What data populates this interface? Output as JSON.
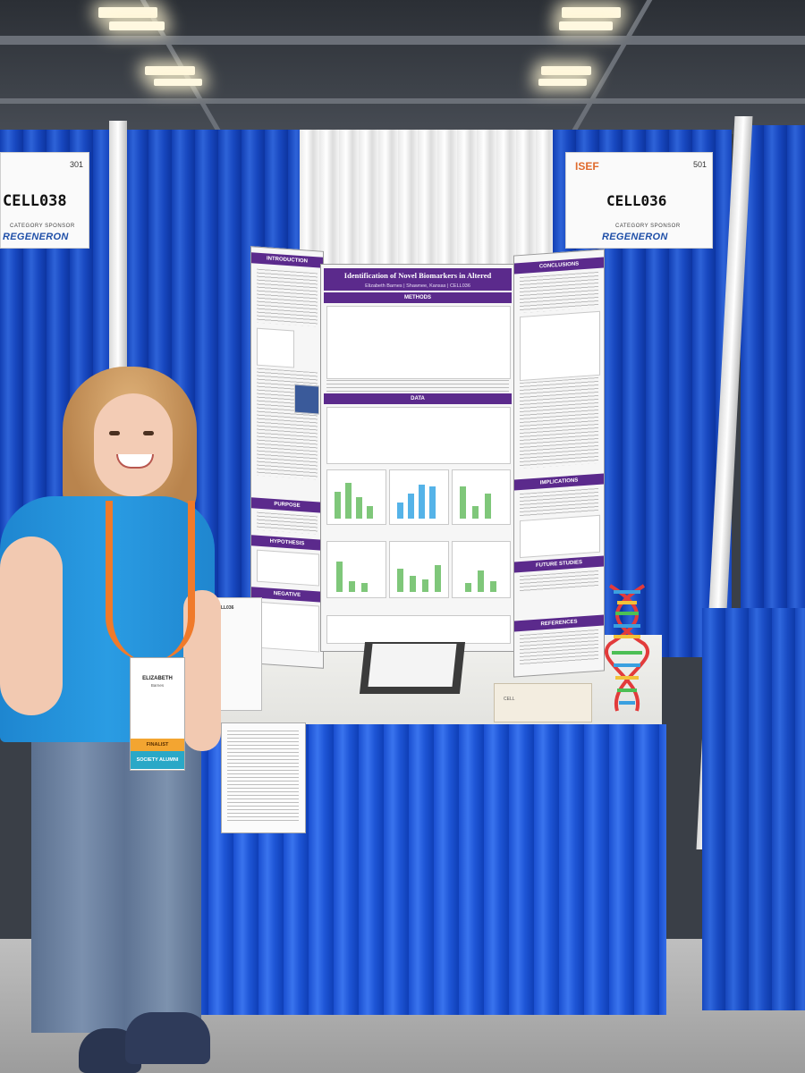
{
  "booth_sign_left": {
    "number": "301",
    "code": "CELL038",
    "category": "CATEGORY SPONSOR",
    "sponsor": "REGENERON"
  },
  "booth_sign_right": {
    "number": "501",
    "code": "CELL036",
    "logo": "ISEF",
    "category": "CATEGORY SPONSOR",
    "sponsor": "REGENERON"
  },
  "poster": {
    "title": "Identification of Novel Biomarkers in Altered Neurogenesis",
    "author_line": "Elizabeth Barnes | Shawnee, Kansas | CELL036",
    "sections_left": [
      "INTRODUCTION",
      "PURPOSE",
      "HYPOTHESIS",
      "NEGATIVE"
    ],
    "sections_center": [
      "METHODS",
      "DATA"
    ],
    "sections_right": [
      "CONCLUSIONS",
      "IMPLICATIONS",
      "FUTURE STUDIES",
      "REFERENCES"
    ]
  },
  "badge": {
    "name": "ELIZABETH",
    "sub": "Barnes",
    "finalist": "FINALIST",
    "alumni": "SOCIETY ALUMNI"
  },
  "doc_left_title": "CELL036",
  "doc_table_label": "CELL"
}
